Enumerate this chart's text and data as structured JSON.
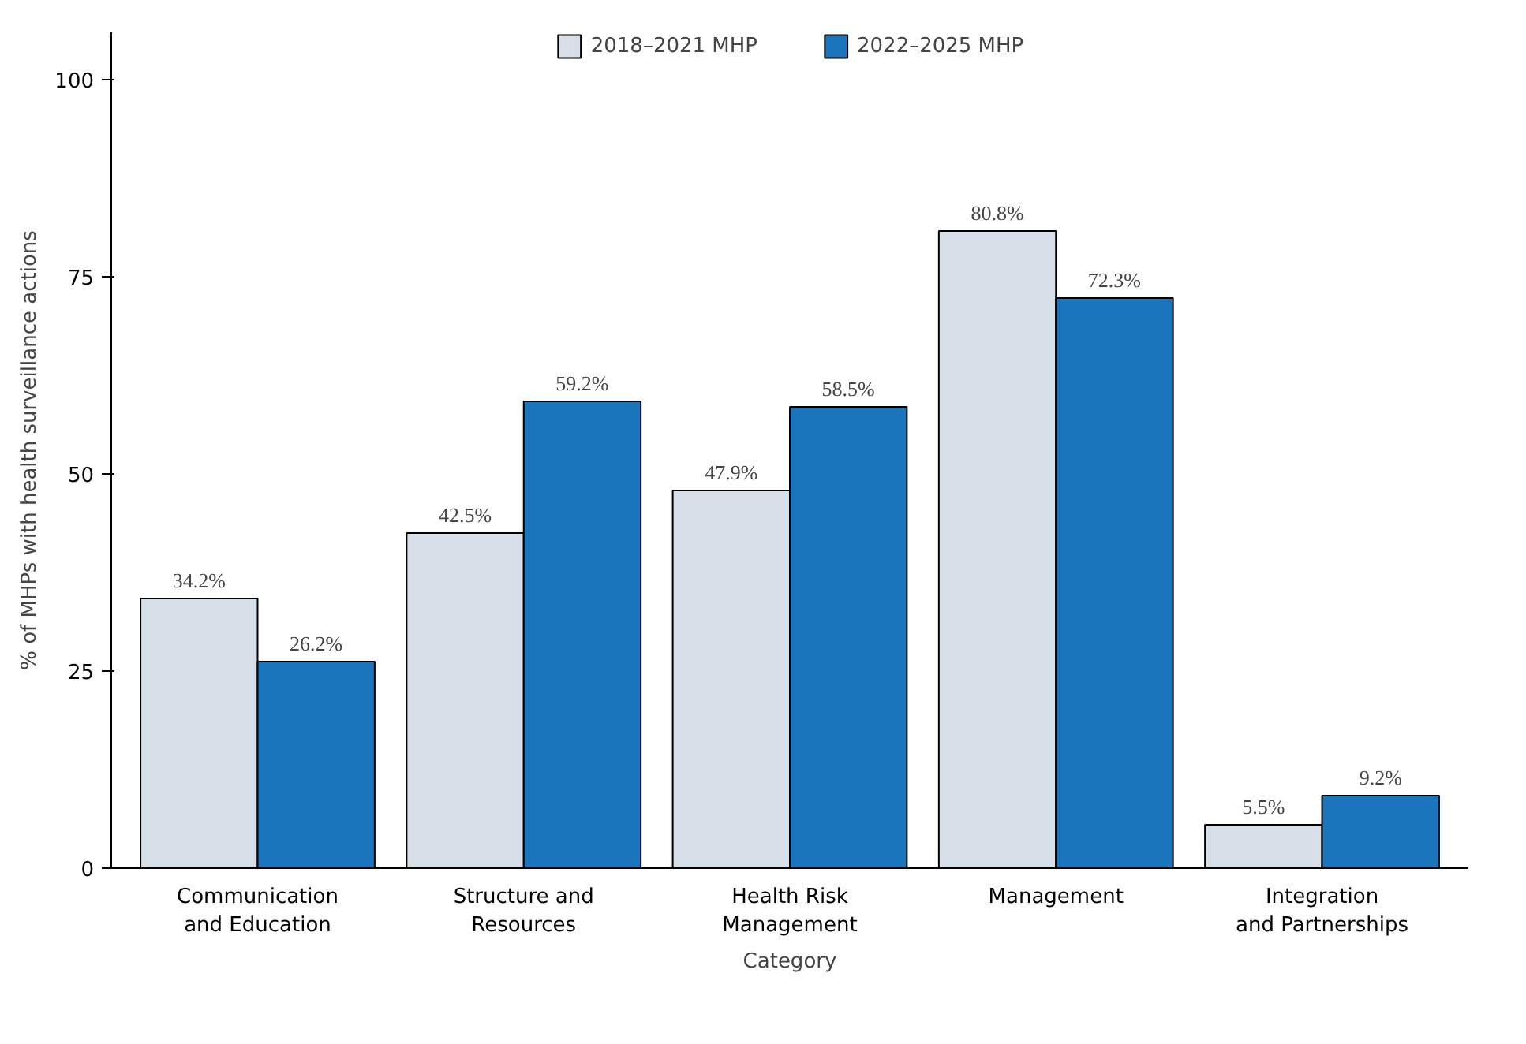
{
  "chart_data": {
    "type": "bar",
    "xlabel": "Category",
    "ylabel": "% of MHPs with health surveillance actions",
    "categories": [
      "Communication\nand Education",
      "Structure and\nResources",
      "Health Risk\nManagement",
      "Management",
      "Integration\nand Partnerships"
    ],
    "series": [
      {
        "name": "2018–2021 MHP",
        "color": "#d6dfe8",
        "values": [
          34.2,
          42.5,
          47.9,
          80.8,
          5.5
        ],
        "value_labels": [
          "34.2%",
          "42.5%",
          "47.9%",
          "80.8%",
          "5.5%"
        ]
      },
      {
        "name": "2022–2025 MHP",
        "color": "#1a75bc",
        "values": [
          26.2,
          59.2,
          58.5,
          72.3,
          9.2
        ],
        "value_labels": [
          "26.2%",
          "59.2%",
          "58.5%",
          "72.3%",
          "9.2%"
        ]
      }
    ],
    "ylim": [
      0,
      106
    ],
    "yticks": [
      0,
      25,
      50,
      75,
      100
    ],
    "grid": false,
    "legend": "top"
  }
}
